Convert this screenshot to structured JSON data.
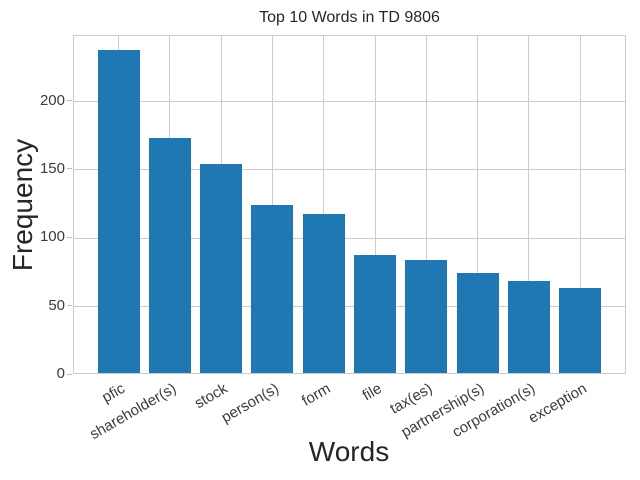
{
  "figure": {
    "background": "#ffffff"
  },
  "chart_data": {
    "type": "bar",
    "title": "Top 10 Words in TD 9806",
    "xlabel": "Words",
    "ylabel": "Frequency",
    "categories": [
      "pfic",
      "shareholder(s)",
      "stock",
      "person(s)",
      "form",
      "file",
      "tax(es)",
      "partnership(s)",
      "corporation(s)",
      "exception"
    ],
    "values": [
      236,
      172,
      153,
      123,
      116,
      86,
      83,
      73,
      67,
      62
    ],
    "yticks": [
      0,
      50,
      100,
      150,
      200
    ],
    "ytick_labels": [
      "0",
      "50",
      "100",
      "150",
      "200"
    ],
    "ylim": [
      0,
      248
    ],
    "grid": true,
    "legend_position": "none",
    "bar_color": "#1f77b4",
    "grid_color": "#cccccc",
    "text_color": "#262626",
    "x_tick_rotation_deg": -30
  }
}
